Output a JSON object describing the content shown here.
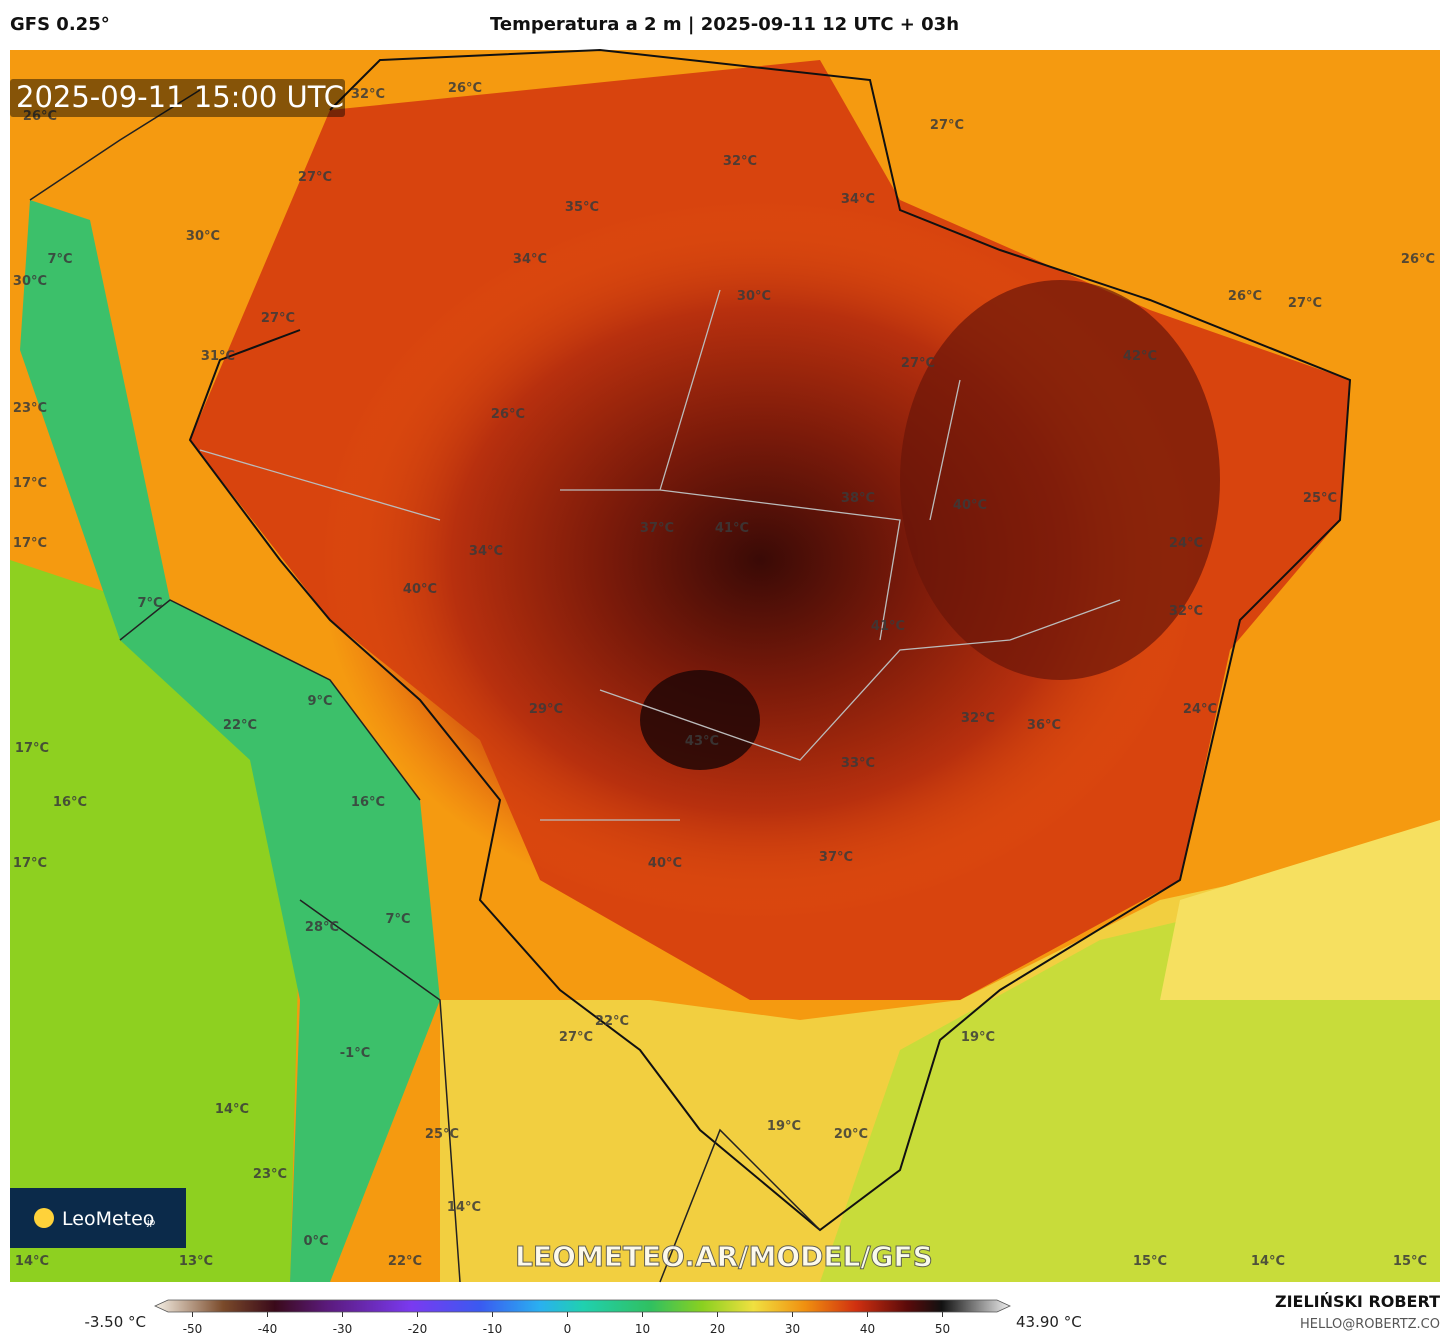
{
  "header": {
    "model": "GFS 0.25°",
    "title": "Temperatura a 2 m | 2025-09-11 12 UTC + 03h"
  },
  "timestamp": "2025-09-11 15:00 UTC",
  "logo": {
    "name": "LeoMeteo",
    "suffix": "jp"
  },
  "watermark": "LEOMETEO.AR/MODEL/GFS",
  "credit": {
    "author": "ZIELIŃSKI ROBERT",
    "email": "HELLO@ROBERTZ.CO"
  },
  "colorbar": {
    "min_label": "-3.50 °C",
    "max_label": "43.90 °C",
    "lim": [
      -55,
      59
    ],
    "ticks": [
      -50,
      -40,
      -30,
      -20,
      -10,
      0,
      10,
      20,
      30,
      40,
      50
    ]
  },
  "labels": [
    "26°C",
    "32°C",
    "26°C",
    "27°C",
    "32°C",
    "27°C",
    "35°C",
    "34°C",
    "30°C",
    "7°C",
    "34°C",
    "26°C",
    "30°C",
    "30°C",
    "26°C",
    "27°C",
    "27°C",
    "31°C",
    "42°C",
    "27°C",
    "23°C",
    "26°C",
    "17°C",
    "38°C",
    "40°C",
    "25°C",
    "37°C",
    "41°C",
    "17°C",
    "34°C",
    "24°C",
    "40°C",
    "32°C",
    "7°C",
    "41°C",
    "9°C",
    "29°C",
    "24°C",
    "32°C",
    "36°C",
    "22°C",
    "43°C",
    "17°C",
    "33°C",
    "16°C",
    "16°C",
    "37°C",
    "40°C",
    "17°C",
    "7°C",
    "28°C",
    "22°C",
    "27°C",
    "19°C",
    "-1°C",
    "19°C",
    "20°C",
    "14°C",
    "25°C",
    "23°C",
    "14°C",
    "0°C",
    "14°C",
    "13°C",
    "22°C",
    "15°C",
    "14°C",
    "15°C"
  ]
}
